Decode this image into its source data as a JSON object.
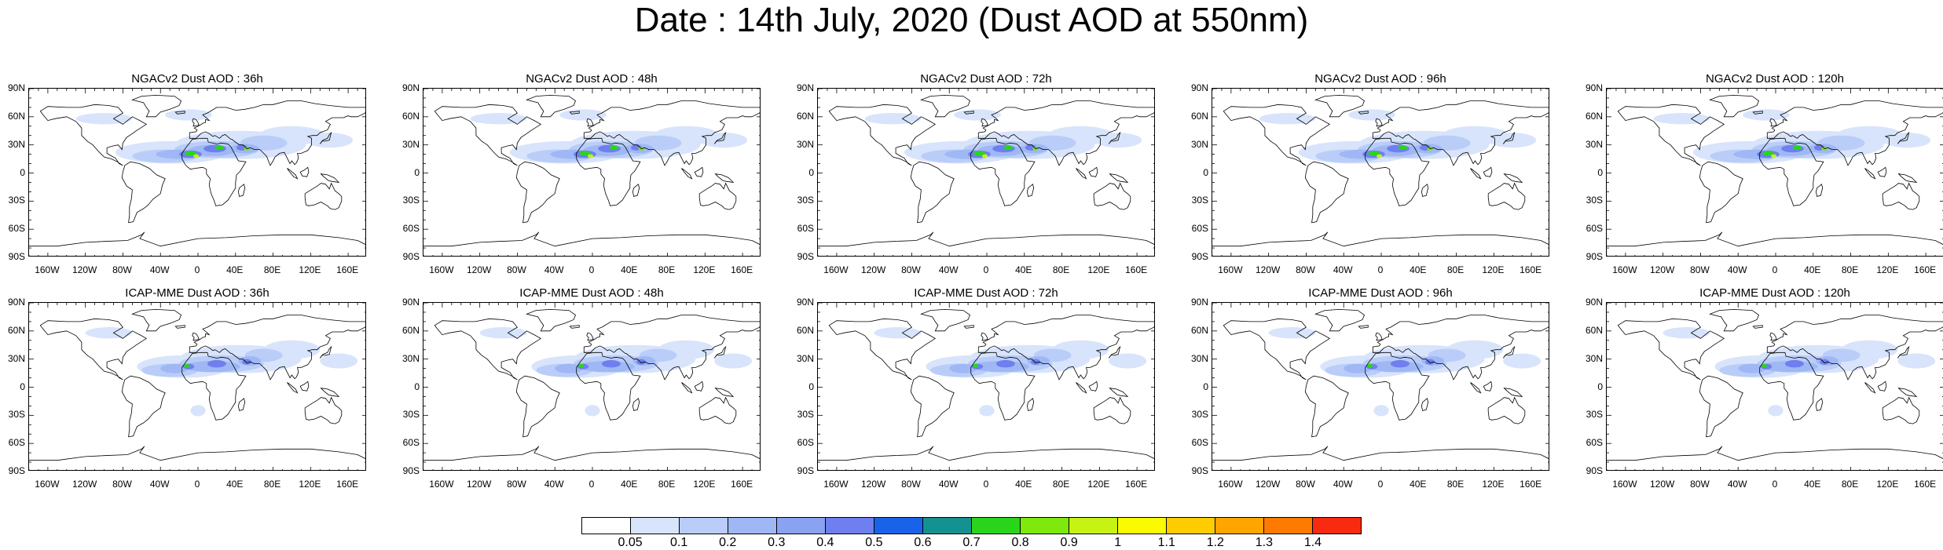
{
  "title": "Date : 14th July, 2020 (Dust AOD at 550nm)",
  "lat_labels": [
    "90N",
    "60N",
    "30N",
    "0",
    "30S",
    "60S",
    "90S"
  ],
  "lon_labels": [
    "160W",
    "120W",
    "80W",
    "40W",
    "0",
    "40E",
    "80E",
    "120E",
    "160E"
  ],
  "panels": [
    {
      "id": "ngac-36",
      "title": "NGACv2 Dust AOD : 36h",
      "model": "ngac",
      "lead": 36
    },
    {
      "id": "ngac-48",
      "title": "NGACv2 Dust AOD : 48h",
      "model": "ngac",
      "lead": 48
    },
    {
      "id": "ngac-72",
      "title": "NGACv2 Dust AOD : 72h",
      "model": "ngac",
      "lead": 72
    },
    {
      "id": "ngac-96",
      "title": "NGACv2 Dust AOD : 96h",
      "model": "ngac",
      "lead": 96
    },
    {
      "id": "ngac-120",
      "title": "NGACv2 Dust AOD : 120h",
      "model": "ngac",
      "lead": 120
    },
    {
      "id": "icap-36",
      "title": "ICAP-MME Dust AOD : 36h",
      "model": "icap",
      "lead": 36
    },
    {
      "id": "icap-48",
      "title": "ICAP-MME Dust AOD : 48h",
      "model": "icap",
      "lead": 48
    },
    {
      "id": "icap-72",
      "title": "ICAP-MME Dust AOD : 72h",
      "model": "icap",
      "lead": 72
    },
    {
      "id": "icap-96",
      "title": "ICAP-MME Dust AOD : 96h",
      "model": "icap",
      "lead": 96
    },
    {
      "id": "icap-120",
      "title": "ICAP-MME Dust AOD : 120h",
      "model": "icap",
      "lead": 120
    }
  ],
  "colorbar": {
    "labels": [
      "0.05",
      "0.1",
      "0.2",
      "0.3",
      "0.4",
      "0.5",
      "0.6",
      "0.7",
      "0.8",
      "0.9",
      "1",
      "1.1",
      "1.2",
      "1.3",
      "1.4"
    ],
    "colors": [
      "#ffffff",
      "#d8e4fb",
      "#b9cdf8",
      "#9fb8f5",
      "#8aa2f2",
      "#6f7ff0",
      "#1a63e8",
      "#149191",
      "#2ad41c",
      "#7fe80c",
      "#c6f214",
      "#fafa00",
      "#ffcc00",
      "#ffa500",
      "#ff7a00",
      "#f82a10"
    ]
  }
}
